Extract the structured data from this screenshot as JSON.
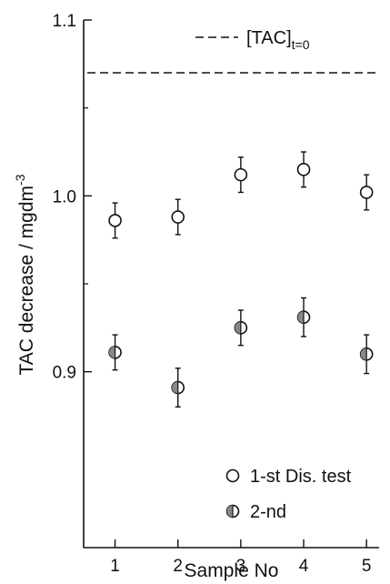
{
  "chart_data": {
    "type": "scatter",
    "xlabel": "Sample No",
    "ylabel": "TAC decrease / mgdm",
    "ylabel_sup": "-3",
    "xlim": [
      0.5,
      5.2
    ],
    "ylim": [
      0.8,
      1.1
    ],
    "x_ticks": [
      1,
      2,
      3,
      4,
      5
    ],
    "x_tick_labels": [
      "1",
      "2",
      "3",
      "4",
      "5"
    ],
    "y_ticks": [
      0.9,
      1.0,
      1.1
    ],
    "y_tick_labels": [
      "0.9",
      "1.0",
      "1.1"
    ],
    "y_minor_ticks": [
      0.95,
      1.05
    ],
    "grid": false,
    "reference_line": {
      "label_prefix": "[TAC]",
      "label_subscript": "t=0",
      "value": 1.07,
      "style": "dashed"
    },
    "series": [
      {
        "name": "1-st Dis. test",
        "marker": "open-circle",
        "x": [
          1,
          2,
          3,
          4,
          5
        ],
        "y": [
          0.986,
          0.988,
          1.012,
          1.015,
          1.002
        ],
        "err": [
          0.01,
          0.01,
          0.01,
          0.01,
          0.01
        ]
      },
      {
        "name": "2-nd",
        "marker": "half-filled-circle",
        "x": [
          1,
          2,
          3,
          4,
          5
        ],
        "y": [
          0.911,
          0.891,
          0.925,
          0.931,
          0.91
        ],
        "err": [
          0.01,
          0.011,
          0.01,
          0.011,
          0.011
        ]
      }
    ],
    "legend_position": "bottom-right",
    "colors": {
      "ink": "#111111",
      "fill": "#888888",
      "background": "#ffffff"
    }
  }
}
